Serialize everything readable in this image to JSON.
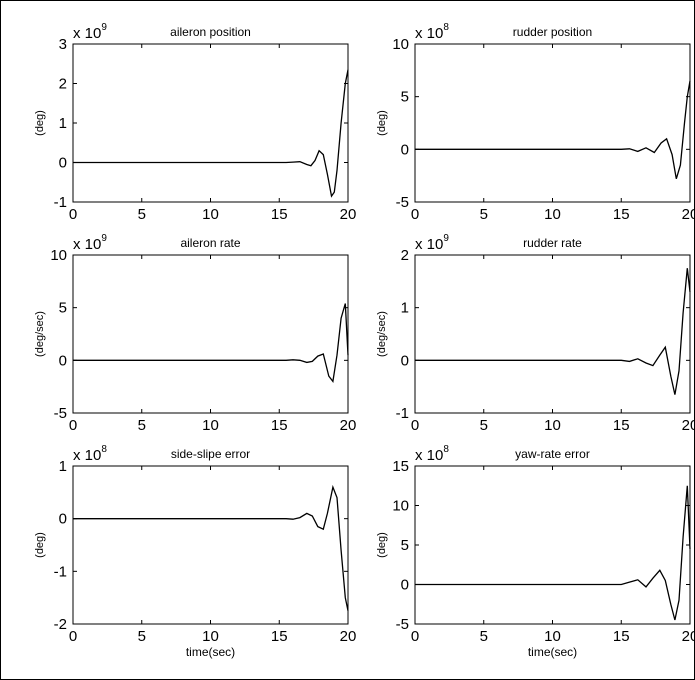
{
  "chart_data": [
    {
      "type": "line",
      "title": "aileron position",
      "ylabel": "(deg)",
      "xlabel": "",
      "multiplier_base": "x 10",
      "multiplier_exp": "9",
      "xlim": [
        0,
        20
      ],
      "ylim": [
        -1,
        3
      ],
      "xticks": [
        "0",
        "5",
        "10",
        "15",
        "20"
      ],
      "yticks": [
        "-1",
        "0",
        "1",
        "2",
        "3"
      ],
      "series": [
        {
          "x": [
            0,
            15.5,
            16.0,
            16.5,
            17.0,
            17.3,
            17.6,
            17.9,
            18.2,
            18.5,
            18.8,
            19.0,
            19.2,
            19.5,
            19.8,
            20.0
          ],
          "values": [
            0,
            0,
            0.01,
            0.02,
            -0.05,
            -0.08,
            0.05,
            0.3,
            0.2,
            -0.3,
            -0.85,
            -0.75,
            -0.2,
            1.0,
            2.0,
            2.35
          ]
        }
      ]
    },
    {
      "type": "line",
      "title": "rudder position",
      "ylabel": "(deg)",
      "xlabel": "",
      "multiplier_base": "x 10",
      "multiplier_exp": "8",
      "xlim": [
        0,
        20
      ],
      "ylim": [
        -5,
        10
      ],
      "xticks": [
        "0",
        "5",
        "10",
        "15",
        "20"
      ],
      "yticks": [
        "-5",
        "0",
        "5",
        "10"
      ],
      "series": [
        {
          "x": [
            0,
            15.0,
            15.6,
            16.2,
            16.8,
            17.4,
            17.9,
            18.3,
            18.7,
            19.0,
            19.3,
            19.6,
            19.8,
            20.0
          ],
          "values": [
            0,
            0,
            0.05,
            -0.2,
            0.15,
            -0.3,
            0.6,
            1.0,
            -0.5,
            -2.8,
            -1.5,
            2.5,
            5.0,
            6.5
          ]
        }
      ]
    },
    {
      "type": "line",
      "title": "aileron rate",
      "ylabel": "(deg/sec)",
      "xlabel": "",
      "multiplier_base": "x 10",
      "multiplier_exp": "9",
      "xlim": [
        0,
        20
      ],
      "ylim": [
        -5,
        10
      ],
      "xticks": [
        "0",
        "5",
        "10",
        "15",
        "20"
      ],
      "yticks": [
        "-5",
        "0",
        "5",
        "10"
      ],
      "series": [
        {
          "x": [
            0,
            15.5,
            16.0,
            16.5,
            17.0,
            17.4,
            17.8,
            18.2,
            18.6,
            18.9,
            19.2,
            19.5,
            19.8,
            20.0
          ],
          "values": [
            0,
            0,
            0.05,
            0.0,
            -0.2,
            -0.1,
            0.4,
            0.6,
            -1.5,
            -2.0,
            0.5,
            4.0,
            5.4,
            0.5
          ]
        }
      ]
    },
    {
      "type": "line",
      "title": "rudder rate",
      "ylabel": "(deg/sec)",
      "xlabel": "",
      "multiplier_base": "x 10",
      "multiplier_exp": "9",
      "xlim": [
        0,
        20
      ],
      "ylim": [
        -1,
        2
      ],
      "xticks": [
        "0",
        "5",
        "10",
        "15",
        "20"
      ],
      "yticks": [
        "-1",
        "0",
        "1",
        "2"
      ],
      "series": [
        {
          "x": [
            0,
            15.0,
            15.6,
            16.2,
            16.8,
            17.3,
            17.8,
            18.2,
            18.6,
            18.9,
            19.2,
            19.5,
            19.8,
            20.0
          ],
          "values": [
            0,
            0,
            -0.02,
            0.03,
            -0.05,
            -0.1,
            0.1,
            0.25,
            -0.3,
            -0.65,
            -0.2,
            0.9,
            1.75,
            1.3
          ]
        }
      ]
    },
    {
      "type": "line",
      "title": "side-slipe error",
      "ylabel": "(deg)",
      "xlabel": "time(sec)",
      "multiplier_base": "x 10",
      "multiplier_exp": "8",
      "xlim": [
        0,
        20
      ],
      "ylim": [
        -2,
        1
      ],
      "xticks": [
        "0",
        "5",
        "10",
        "15",
        "20"
      ],
      "yticks": [
        "-2",
        "-1",
        "0",
        "1"
      ],
      "series": [
        {
          "x": [
            0,
            15.5,
            16.0,
            16.5,
            17.0,
            17.4,
            17.8,
            18.2,
            18.5,
            18.9,
            19.2,
            19.5,
            19.8,
            20.0
          ],
          "values": [
            0,
            0,
            -0.01,
            0.02,
            0.1,
            0.05,
            -0.15,
            -0.2,
            0.1,
            0.6,
            0.4,
            -0.6,
            -1.5,
            -1.75
          ]
        }
      ]
    },
    {
      "type": "line",
      "title": "yaw-rate error",
      "ylabel": "(deg)",
      "xlabel": "time(sec)",
      "multiplier_base": "x 10",
      "multiplier_exp": "8",
      "xlim": [
        0,
        20
      ],
      "ylim": [
        -5,
        15
      ],
      "xticks": [
        "0",
        "5",
        "10",
        "15",
        "20"
      ],
      "yticks": [
        "-5",
        "0",
        "5",
        "10",
        "15"
      ],
      "series": [
        {
          "x": [
            0,
            15.0,
            15.6,
            16.2,
            16.8,
            17.3,
            17.8,
            18.2,
            18.6,
            18.9,
            19.2,
            19.5,
            19.8,
            20.0
          ],
          "values": [
            0,
            0,
            0.3,
            0.6,
            -0.3,
            0.8,
            1.8,
            0.5,
            -2.5,
            -4.5,
            -2.0,
            6.0,
            12.5,
            4.5
          ]
        }
      ]
    }
  ]
}
